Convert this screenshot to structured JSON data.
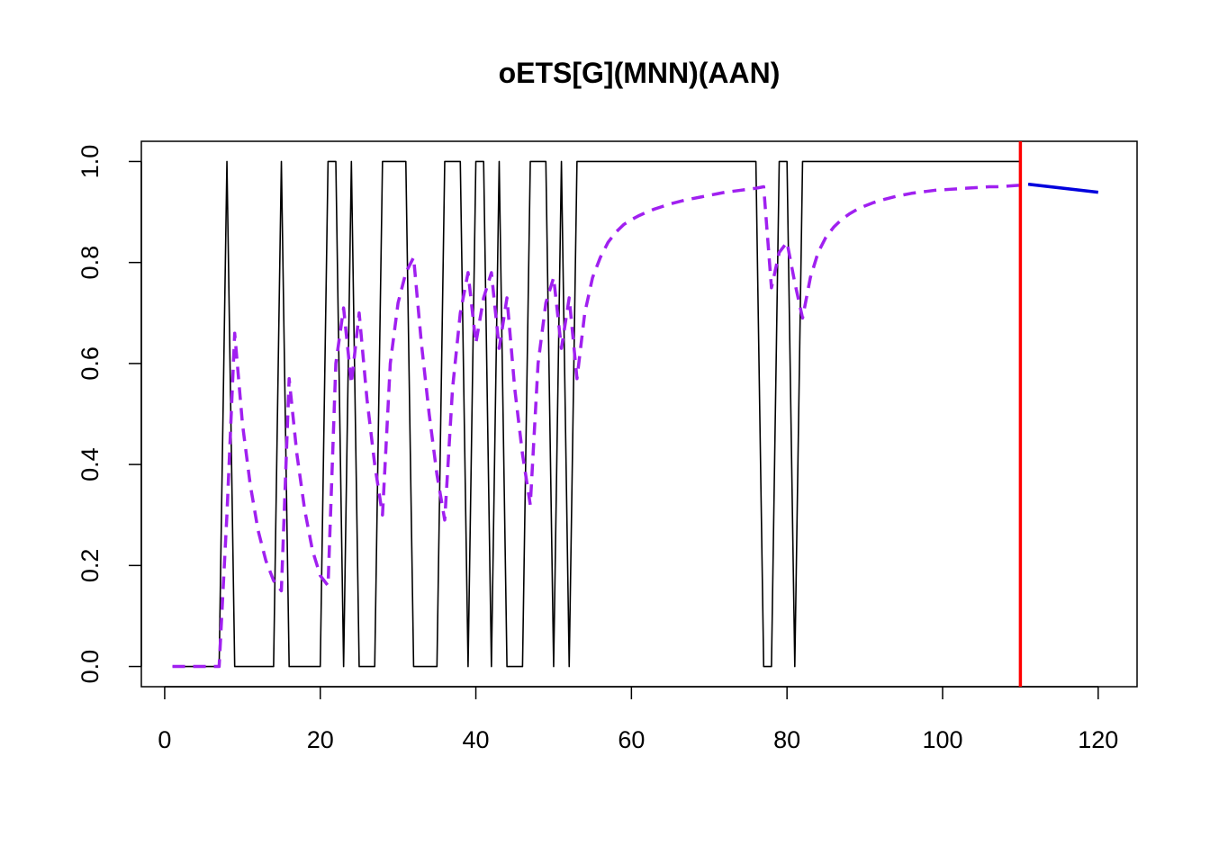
{
  "chart_data": {
    "type": "line",
    "title": "oETS[G](MNN)(AAN)",
    "xlabel": "",
    "ylabel": "",
    "xlim": [
      -3,
      125
    ],
    "ylim": [
      -0.04,
      1.04
    ],
    "x_ticks": [
      0,
      20,
      40,
      60,
      80,
      100,
      120
    ],
    "x_tick_labels": [
      "0",
      "20",
      "40",
      "60",
      "80",
      "100",
      "120"
    ],
    "y_ticks": [
      0.0,
      0.2,
      0.4,
      0.6,
      0.8,
      1.0
    ],
    "y_tick_labels": [
      "0.0",
      "0.2",
      "0.4",
      "0.6",
      "0.8",
      "1.0"
    ],
    "grid": false,
    "legend": "none",
    "series": [
      {
        "style": "solid",
        "color": "#000000",
        "x": [
          1,
          2,
          3,
          4,
          5,
          6,
          7,
          8,
          9,
          10,
          11,
          12,
          13,
          14,
          15,
          16,
          17,
          18,
          19,
          20,
          21,
          22,
          23,
          24,
          25,
          26,
          27,
          28,
          29,
          30,
          31,
          32,
          33,
          34,
          35,
          36,
          37,
          38,
          39,
          40,
          41,
          42,
          43,
          44,
          45,
          46,
          47,
          48,
          49,
          50,
          51,
          52,
          53,
          54,
          55,
          56,
          57,
          58,
          59,
          60,
          61,
          62,
          63,
          64,
          65,
          66,
          67,
          68,
          69,
          70,
          71,
          72,
          73,
          74,
          75,
          76,
          77,
          78,
          79,
          80,
          81,
          82,
          83,
          84,
          85,
          86,
          87,
          88,
          89,
          90,
          91,
          92,
          93,
          94,
          95,
          96,
          97,
          98,
          99,
          100,
          101,
          102,
          103,
          104,
          105,
          106,
          107,
          108,
          109,
          110
        ],
        "values": [
          0,
          0,
          0,
          0,
          0,
          0,
          0,
          1,
          0,
          0,
          0,
          0,
          0,
          0,
          1,
          0,
          0,
          0,
          0,
          0,
          1,
          1,
          0,
          1,
          0,
          0,
          0,
          1,
          1,
          1,
          1,
          0,
          0,
          0,
          0,
          1,
          1,
          1,
          0,
          1,
          1,
          0,
          1,
          0,
          0,
          0,
          1,
          1,
          1,
          0,
          1,
          0,
          1,
          1,
          1,
          1,
          1,
          1,
          1,
          1,
          1,
          1,
          1,
          1,
          1,
          1,
          1,
          1,
          1,
          1,
          1,
          1,
          1,
          1,
          1,
          1,
          0,
          0,
          1,
          1,
          0,
          1,
          1,
          1,
          1,
          1,
          1,
          1,
          1,
          1,
          1,
          1,
          1,
          1,
          1,
          1,
          1,
          1,
          1,
          1,
          1,
          1,
          1,
          1,
          1,
          1,
          1,
          1,
          1,
          1
        ]
      },
      {
        "style": "dashed",
        "color": "#a020f0",
        "x": [
          1,
          2,
          3,
          4,
          5,
          6,
          7,
          8,
          9,
          10,
          11,
          12,
          13,
          14,
          15,
          16,
          17,
          18,
          19,
          20,
          21,
          22,
          23,
          24,
          25,
          26,
          27,
          28,
          29,
          30,
          31,
          32,
          33,
          34,
          35,
          36,
          37,
          38,
          39,
          40,
          41,
          42,
          43,
          44,
          45,
          46,
          47,
          48,
          49,
          50,
          51,
          52,
          53,
          54,
          55,
          56,
          57,
          58,
          59,
          60,
          61,
          62,
          63,
          64,
          65,
          66,
          67,
          68,
          69,
          70,
          71,
          72,
          73,
          74,
          75,
          76,
          77,
          78,
          79,
          80,
          81,
          82,
          83,
          84,
          85,
          86,
          87,
          88,
          89,
          90,
          91,
          92,
          93,
          94,
          95,
          96,
          97,
          98,
          99,
          100,
          101,
          102,
          103,
          104,
          105,
          106,
          107,
          108,
          109,
          110
        ],
        "values": [
          0,
          0,
          0,
          0,
          0,
          0,
          0,
          0.3,
          0.66,
          0.48,
          0.36,
          0.27,
          0.21,
          0.17,
          0.15,
          0.57,
          0.42,
          0.31,
          0.23,
          0.18,
          0.16,
          0.6,
          0.71,
          0.56,
          0.7,
          0.53,
          0.4,
          0.3,
          0.6,
          0.72,
          0.78,
          0.81,
          0.64,
          0.5,
          0.38,
          0.29,
          0.55,
          0.7,
          0.78,
          0.64,
          0.73,
          0.78,
          0.63,
          0.73,
          0.55,
          0.42,
          0.32,
          0.6,
          0.72,
          0.77,
          0.63,
          0.73,
          0.57,
          0.7,
          0.77,
          0.81,
          0.84,
          0.86,
          0.875,
          0.885,
          0.893,
          0.9,
          0.906,
          0.911,
          0.916,
          0.92,
          0.924,
          0.927,
          0.93,
          0.933,
          0.936,
          0.939,
          0.941,
          0.943,
          0.945,
          0.947,
          0.95,
          0.75,
          0.82,
          0.84,
          0.76,
          0.69,
          0.77,
          0.82,
          0.85,
          0.87,
          0.885,
          0.896,
          0.905,
          0.912,
          0.918,
          0.923,
          0.927,
          0.931,
          0.934,
          0.937,
          0.939,
          0.941,
          0.943,
          0.944,
          0.945,
          0.946,
          0.947,
          0.948,
          0.949,
          0.95,
          0.95,
          0.951,
          0.952,
          0.953
        ]
      },
      {
        "style": "solid",
        "color": "#0000dd",
        "x": [
          111,
          120
        ],
        "values": [
          0.955,
          0.939
        ]
      }
    ],
    "annotations": [
      {
        "type": "vertical-line",
        "x": 110,
        "color": "#ff0000"
      }
    ]
  }
}
